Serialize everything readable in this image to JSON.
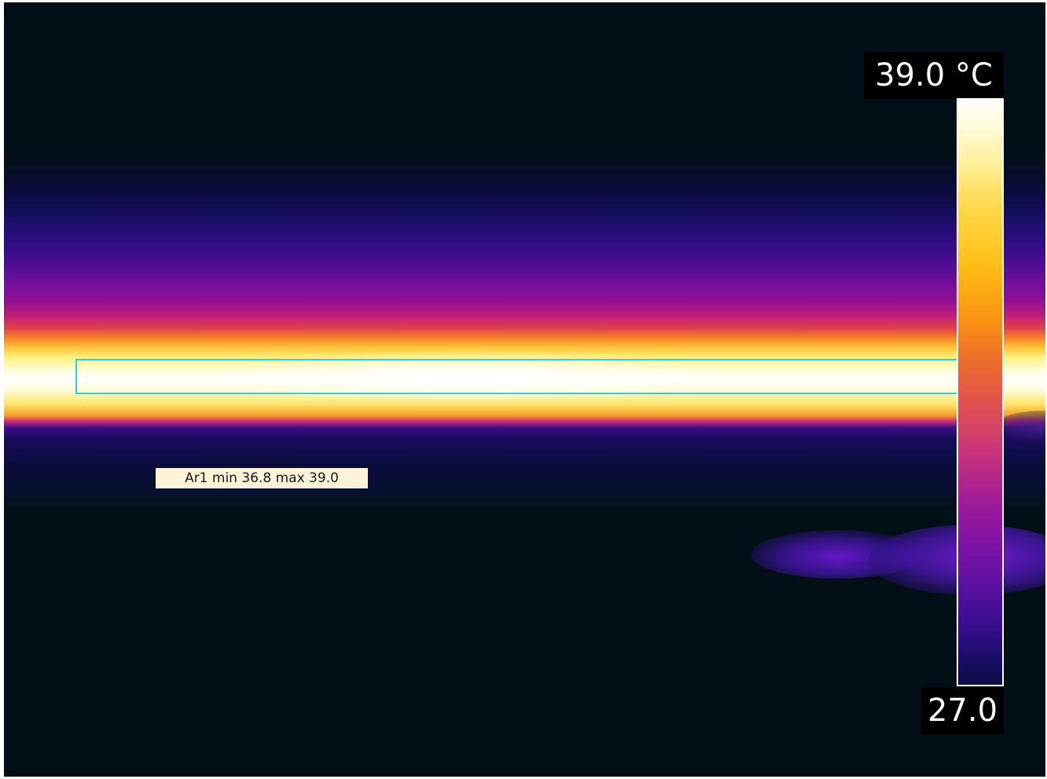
{
  "scale": {
    "max_label": "39.0 °C",
    "min_label": "27.0",
    "max_value": 39.0,
    "min_value": 27.0,
    "unit": "°C",
    "palette_colors": [
      "#fffefb",
      "#fff3a4",
      "#ffbf17",
      "#ee6f2a",
      "#c93579",
      "#7e13a6",
      "#2f0e8a",
      "#0e0c46"
    ]
  },
  "measurement": {
    "label": "Ar1 min 36.8 max 39.0",
    "roi_color": "#2ad4d9"
  }
}
